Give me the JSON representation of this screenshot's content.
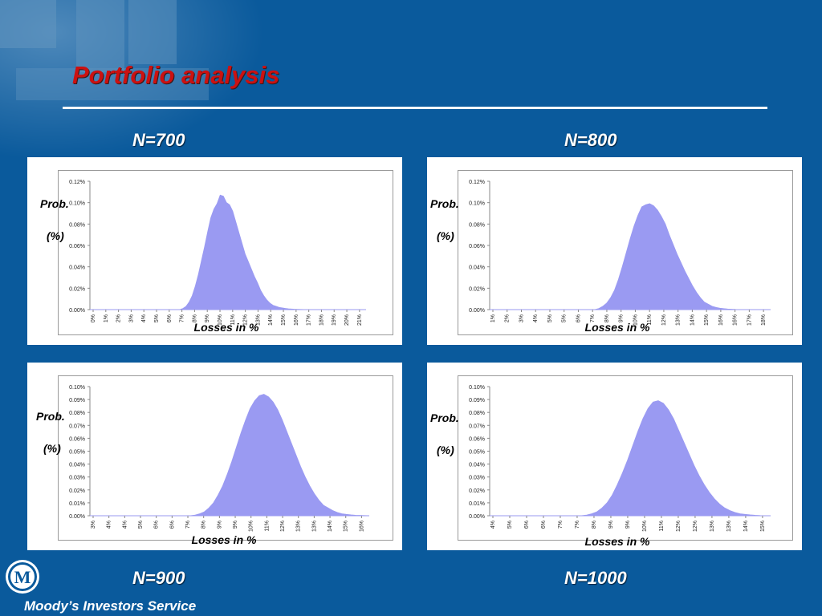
{
  "slide": {
    "title": "Portfolio analysis",
    "footer": "Moody’s Investors Service"
  },
  "colors": {
    "background": "#0a5a9c",
    "title": "#cc1111",
    "fill": "#9a9af2",
    "panel": "#ffffff"
  },
  "chart_data": [
    {
      "type": "area",
      "heading": "N=700",
      "ylabel_top": "Prob.",
      "ylabel_bottom": "(%)",
      "xlabel": "Losses in %",
      "y_ticks": [
        "0.00%",
        "0.02%",
        "0.04%",
        "0.06%",
        "0.08%",
        "0.10%",
        "0.12%"
      ],
      "ylim": [
        0,
        0.12
      ],
      "x_ticks": [
        "0%",
        "1%",
        "2%",
        "3%",
        "4%",
        "5%",
        "6%",
        "7%",
        "8%",
        "9%",
        "10%",
        "11%",
        "12%",
        "13%",
        "14%",
        "15%",
        "16%",
        "17%",
        "18%",
        "19%",
        "20%",
        "21%"
      ],
      "values": [
        0,
        0,
        0,
        0,
        0,
        0,
        0,
        0,
        0,
        0,
        0,
        0,
        0,
        0,
        0,
        0,
        0,
        0,
        0,
        0,
        0,
        0,
        0,
        0,
        0,
        0,
        0,
        0,
        0,
        0,
        0.001,
        0.003,
        0.007,
        0.013,
        0.022,
        0.033,
        0.046,
        0.059,
        0.073,
        0.086,
        0.094,
        0.099,
        0.107,
        0.106,
        0.1,
        0.098,
        0.092,
        0.082,
        0.072,
        0.062,
        0.052,
        0.045,
        0.038,
        0.031,
        0.025,
        0.018,
        0.013,
        0.009,
        0.006,
        0.004,
        0.003,
        0.002,
        0.0015,
        0.001,
        0.0007,
        0.0005,
        0.0003,
        0.0002,
        0.0001,
        0,
        0,
        0,
        0,
        0,
        0,
        0,
        0,
        0,
        0,
        0,
        0,
        0,
        0,
        0,
        0,
        0,
        0,
        0,
        0,
        0
      ]
    },
    {
      "type": "area",
      "heading": "N=800",
      "ylabel_top": "Prob.",
      "ylabel_bottom": "(%)",
      "xlabel": "Losses in %",
      "y_ticks": [
        "0.00%",
        "0.02%",
        "0.04%",
        "0.06%",
        "0.08%",
        "0.10%",
        "0.12%"
      ],
      "ylim": [
        0,
        0.12
      ],
      "x_ticks": [
        "1%",
        "2%",
        "3%",
        "4%",
        "5%",
        "5%",
        "6%",
        "7%",
        "8%",
        "9%",
        "10%",
        "11%",
        "12%",
        "13%",
        "14%",
        "15%",
        "16%",
        "16%",
        "17%",
        "18%"
      ],
      "values": [
        0,
        0,
        0,
        0,
        0,
        0,
        0,
        0,
        0,
        0,
        0,
        0,
        0,
        0,
        0,
        0,
        0,
        0,
        0,
        0,
        0,
        0,
        0,
        0,
        0,
        0,
        0,
        0,
        0.001,
        0.003,
        0.006,
        0.011,
        0.018,
        0.028,
        0.04,
        0.053,
        0.066,
        0.078,
        0.088,
        0.096,
        0.098,
        0.099,
        0.097,
        0.093,
        0.087,
        0.08,
        0.07,
        0.061,
        0.052,
        0.044,
        0.036,
        0.029,
        0.022,
        0.016,
        0.011,
        0.007,
        0.005,
        0.003,
        0.002,
        0.0012,
        0.0008,
        0.0005,
        0.0003,
        0.0001,
        0,
        0,
        0,
        0,
        0,
        0,
        0,
        0,
        0
      ]
    },
    {
      "type": "area",
      "heading": "N=900",
      "ylabel_top": "Prob.",
      "ylabel_bottom": "(%)",
      "xlabel": "Losses in %",
      "y_ticks": [
        "0.00%",
        "0.01%",
        "0.02%",
        "0.03%",
        "0.04%",
        "0.05%",
        "0.06%",
        "0.07%",
        "0.08%",
        "0.09%",
        "0.10%"
      ],
      "ylim": [
        0,
        0.1
      ],
      "x_ticks": [
        "3%",
        "4%",
        "4%",
        "5%",
        "6%",
        "6%",
        "7%",
        "8%",
        "9%",
        "9%",
        "10%",
        "11%",
        "12%",
        "13%",
        "13%",
        "14%",
        "15%",
        "16%"
      ],
      "values": [
        0,
        0,
        0,
        0,
        0,
        0,
        0,
        0,
        0,
        0,
        0,
        0,
        0,
        0,
        0,
        0,
        0,
        0,
        0,
        0,
        0,
        0,
        0,
        0.0005,
        0.0015,
        0.003,
        0.006,
        0.01,
        0.016,
        0.023,
        0.032,
        0.042,
        0.053,
        0.064,
        0.074,
        0.083,
        0.089,
        0.093,
        0.094,
        0.092,
        0.088,
        0.082,
        0.074,
        0.065,
        0.056,
        0.047,
        0.038,
        0.03,
        0.023,
        0.017,
        0.012,
        0.008,
        0.006,
        0.004,
        0.0025,
        0.0015,
        0.001,
        0.0006,
        0.0003,
        0.0002,
        0.0001,
        0
      ]
    },
    {
      "type": "area",
      "heading": "N=1000",
      "ylabel_top": "Prob.",
      "ylabel_bottom": "(%)",
      "xlabel": "Losses in %",
      "y_ticks": [
        "0.00%",
        "0.01%",
        "0.02%",
        "0.03%",
        "0.04%",
        "0.05%",
        "0.06%",
        "0.07%",
        "0.08%",
        "0.09%",
        "0.10%"
      ],
      "ylim": [
        0,
        0.1
      ],
      "x_ticks": [
        "4%",
        "5%",
        "6%",
        "6%",
        "7%",
        "7%",
        "8%",
        "9%",
        "9%",
        "10%",
        "11%",
        "12%",
        "12%",
        "13%",
        "13%",
        "14%",
        "15%"
      ],
      "values": [
        0,
        0,
        0,
        0,
        0,
        0,
        0,
        0,
        0,
        0,
        0,
        0,
        0,
        0,
        0,
        0,
        0,
        0,
        0,
        0.0005,
        0.0015,
        0.003,
        0.006,
        0.01,
        0.016,
        0.024,
        0.033,
        0.043,
        0.054,
        0.065,
        0.075,
        0.083,
        0.088,
        0.089,
        0.087,
        0.082,
        0.075,
        0.066,
        0.057,
        0.048,
        0.039,
        0.031,
        0.024,
        0.018,
        0.013,
        0.009,
        0.006,
        0.004,
        0.0025,
        0.0015,
        0.001,
        0.0006,
        0.0003,
        0.0001,
        0,
        0
      ]
    }
  ]
}
